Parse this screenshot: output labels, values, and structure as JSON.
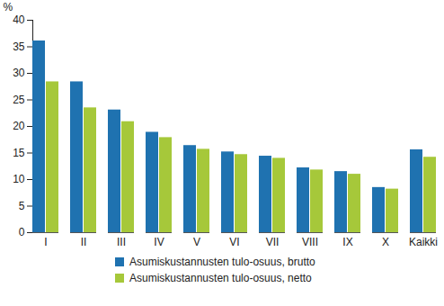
{
  "chart_data": {
    "type": "bar",
    "y_label": "%",
    "categories": [
      "I",
      "II",
      "III",
      "IV",
      "V",
      "VI",
      "VII",
      "VIII",
      "IX",
      "X",
      "Kaikki"
    ],
    "series": [
      {
        "name": "Asumiskustannusten tulo-osuus, brutto",
        "color": "#1f72b0",
        "values": [
          36.1,
          28.4,
          23.1,
          18.9,
          16.4,
          15.2,
          14.4,
          12.2,
          11.5,
          8.5,
          15.6
        ]
      },
      {
        "name": "Asumiskustannusten tulo-osuus, netto",
        "color": "#a6c83a",
        "values": [
          28.4,
          23.5,
          20.9,
          17.9,
          15.7,
          14.7,
          14.0,
          11.8,
          11.0,
          8.2,
          14.2
        ]
      }
    ],
    "ylim": [
      0,
      40
    ],
    "yticks": [
      0,
      5,
      10,
      15,
      20,
      25,
      30,
      35,
      40
    ],
    "grid": false,
    "legend": "bottom"
  }
}
